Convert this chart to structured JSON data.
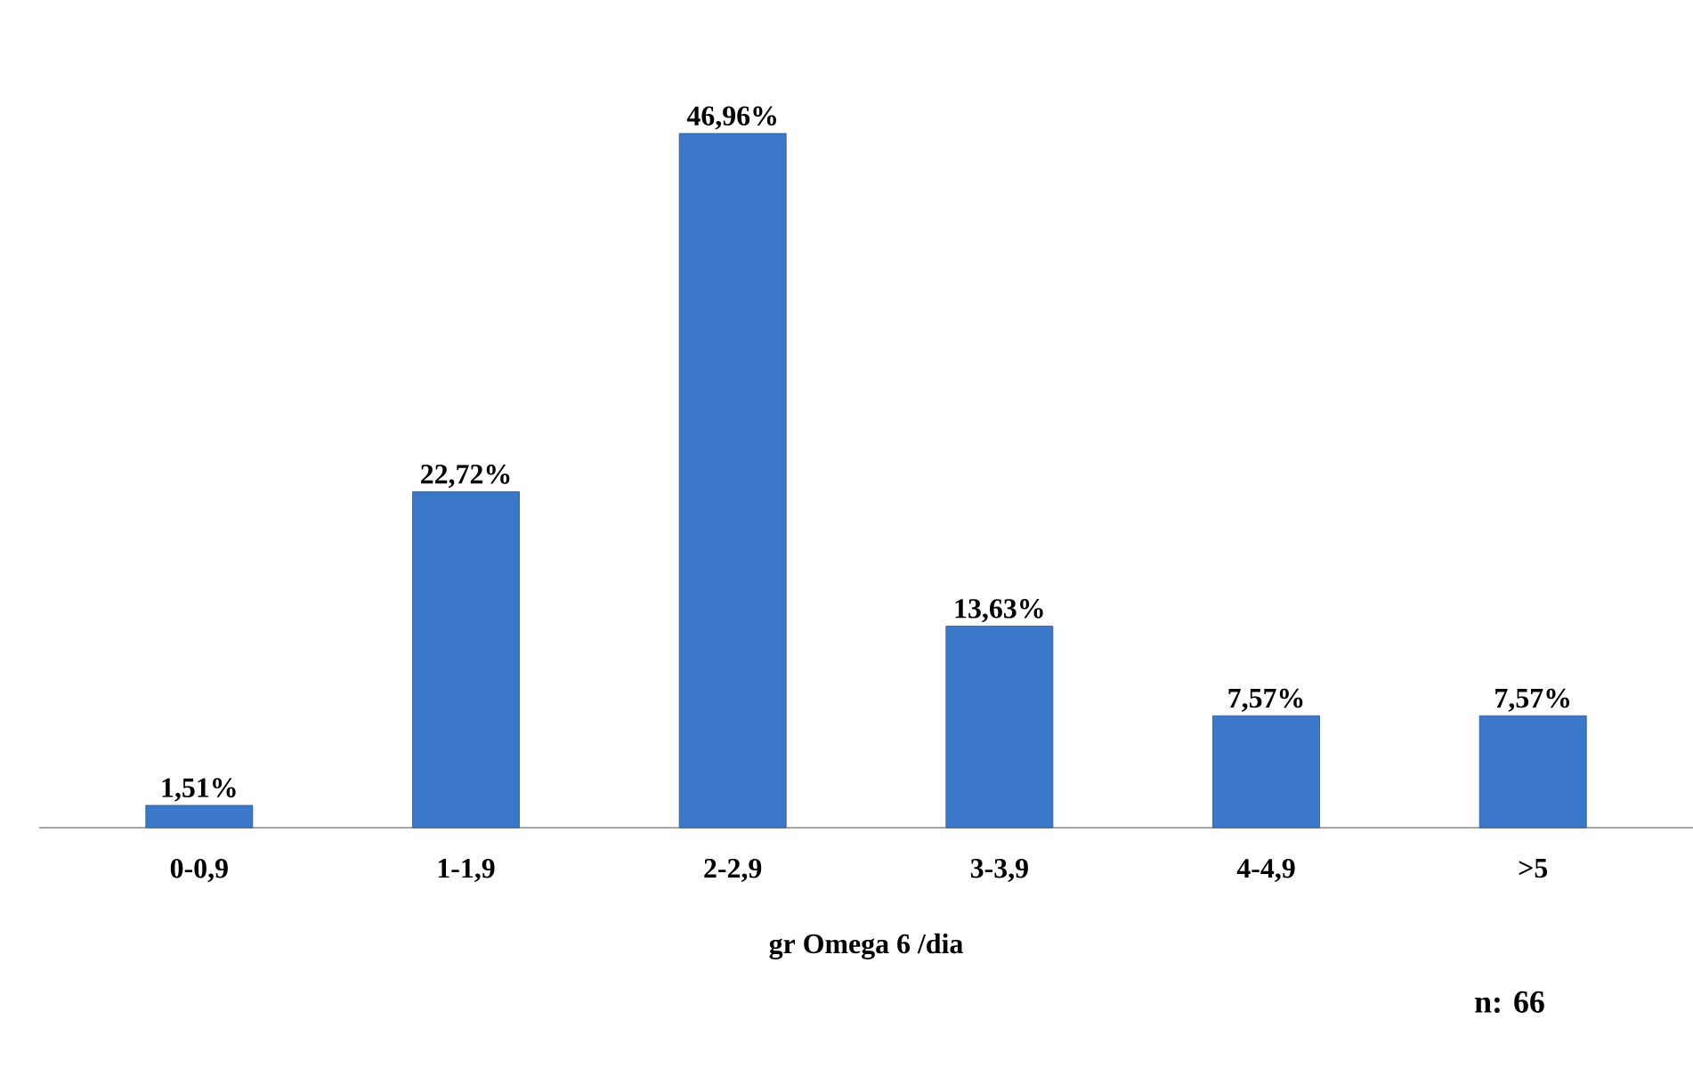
{
  "chart_data": {
    "type": "bar",
    "xlabel": "gr  Omega 6 /dia",
    "categories": [
      "0-0,9",
      "1-1,9",
      "2-2,9",
      "3-3,9",
      "4-4,9",
      ">5"
    ],
    "values": [
      1.51,
      22.72,
      46.96,
      13.63,
      7.57,
      7.57
    ],
    "value_labels": [
      "1,51%",
      "22,72%",
      "46,96%",
      "13,63%",
      "7,57%",
      "7,57%"
    ],
    "color": "#3b78c9",
    "annotations": [
      "n: 66"
    ]
  }
}
